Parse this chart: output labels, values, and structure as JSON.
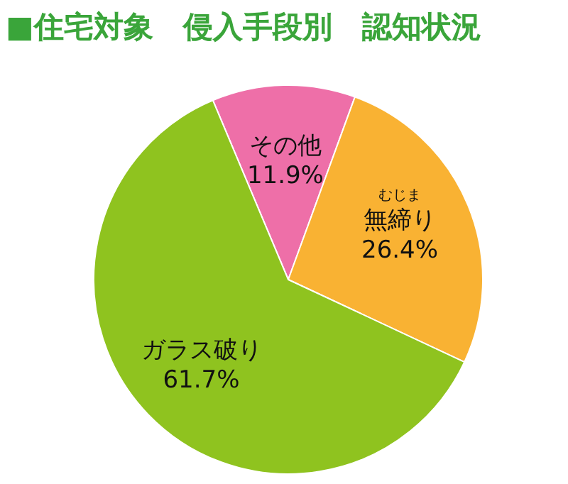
{
  "chart_data": {
    "type": "pie",
    "title": "■住宅対象　侵入手段別　認知状況",
    "categories": [
      "その他",
      "無締り",
      "ガラス破り"
    ],
    "values": [
      11.9,
      26.4,
      61.7
    ],
    "value_labels": [
      "11.9%",
      "26.4%",
      "61.7%"
    ],
    "colors": [
      "#ee6fa8",
      "#f9b233",
      "#8fc31f"
    ],
    "annotations": [
      {
        "text": "むじま",
        "x": "無締り"
      }
    ]
  }
}
